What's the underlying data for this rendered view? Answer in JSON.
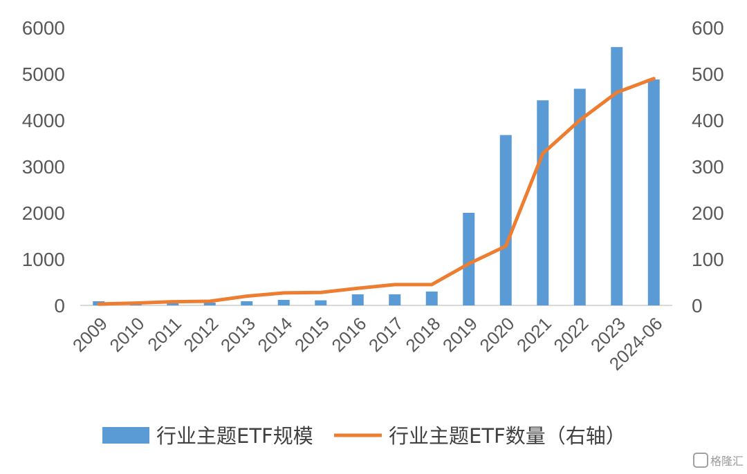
{
  "chart_data": {
    "type": "bar+line",
    "categories": [
      "2009",
      "2010",
      "2011",
      "2012",
      "2013",
      "2014",
      "2015",
      "2016",
      "2017",
      "2018",
      "2019",
      "2020",
      "2021",
      "2022",
      "2023",
      "2024-06"
    ],
    "series": [
      {
        "name": "行业主题ETF规模",
        "type": "bar",
        "axis": "left",
        "color": "#5B9BD5",
        "values": [
          90,
          50,
          60,
          60,
          90,
          120,
          110,
          240,
          240,
          300,
          2000,
          3680,
          4430,
          4680,
          5580,
          4880
        ]
      },
      {
        "name": "行业主题ETF数量（右轴）",
        "type": "line",
        "axis": "right",
        "color": "#ED7D31",
        "values": [
          3,
          5,
          8,
          9,
          20,
          27,
          28,
          37,
          45,
          45,
          90,
          128,
          328,
          400,
          460,
          490
        ]
      }
    ],
    "y_left": {
      "min": 0,
      "max": 6000,
      "ticks": [
        0,
        1000,
        2000,
        3000,
        4000,
        5000,
        6000
      ]
    },
    "y_right": {
      "min": 0,
      "max": 600,
      "ticks": [
        0,
        100,
        200,
        300,
        400,
        500,
        600
      ]
    },
    "grid": false,
    "legend_position": "bottom"
  },
  "watermark": {
    "text": "格隆汇"
  }
}
